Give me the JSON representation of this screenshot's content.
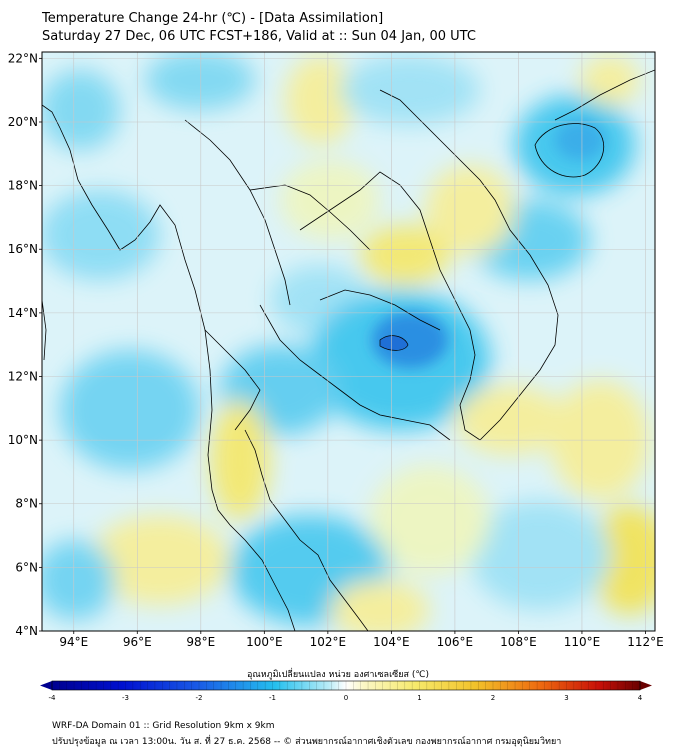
{
  "header": {
    "title": "Temperature Change 24-hr (℃) - [Data Assimilation]",
    "subtitle": "Saturday 27 Dec, 06 UTC FCST+186, Valid at :: Sun 04 Jan, 00 UTC"
  },
  "map": {
    "lat_labels": [
      "22°N",
      "20°N",
      "18°N",
      "16°N",
      "14°N",
      "12°N",
      "10°N",
      "8°N",
      "6°N",
      "4°N"
    ],
    "lon_labels": [
      "94°E",
      "96°E",
      "98°E",
      "100°E",
      "102°E",
      "104°E",
      "106°E",
      "108°E",
      "110°E",
      "112°E"
    ],
    "extent": {
      "lon": [
        93,
        112.3
      ],
      "lat": [
        4,
        22.2
      ]
    },
    "grid": true,
    "colors": {
      "cool": "#37c8ee",
      "warm": "#f3ea73",
      "deep_cool": "#1f6fd6",
      "border": "#000000"
    }
  },
  "colorbar": {
    "title": "อุณหภูมิเปลี่ยนแปลง หน่วย องศาเซลเซียส (℃)",
    "ticks": [
      "-4",
      "-3",
      "-2",
      "-1",
      "0",
      "1",
      "2",
      "3",
      "4"
    ],
    "range": [
      -4,
      4
    ]
  },
  "footer": {
    "line1": "WRF-DA Domain 01 :: Grid Resolution 9km x 9km",
    "line2": "ปรับปรุงข้อมูล ณ เวลา 13:00น. วัน ส. ที่ 27 ธ.ค. 2568 -- © ส่วนพยากรณ์อากาศเชิงตัวเลข กองพยากรณ์อากาศ กรมอุตุนิยมวิทยา"
  }
}
